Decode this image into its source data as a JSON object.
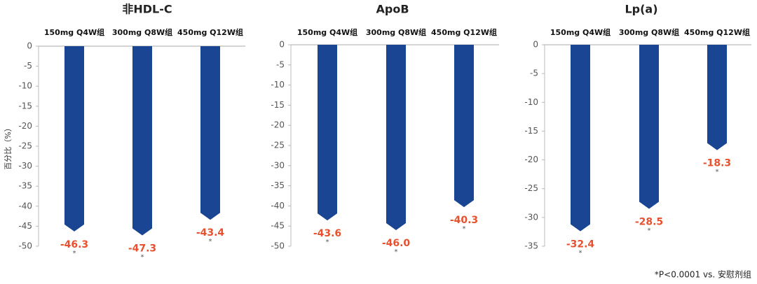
{
  "chart_data": [
    {
      "type": "bar",
      "title": "非HDL-C",
      "ylabel": "百分比（%）",
      "annotation": "*",
      "categories": [
        "150mg Q4W组",
        "300mg Q8W组",
        "450mg Q12W组"
      ],
      "values": [
        -46.3,
        -47.3,
        -43.4
      ],
      "color": "#1a4593",
      "label_color": "#e8502e",
      "ylim": [
        -50,
        0
      ],
      "yticks": [
        0,
        -5,
        -10,
        -15,
        -20,
        -25,
        -30,
        -35,
        -40,
        -45,
        -50
      ]
    },
    {
      "type": "bar",
      "title": "ApoB",
      "annotation": "*",
      "categories": [
        "150mg Q4W组",
        "300mg Q8W组",
        "450mg Q12W组"
      ],
      "values": [
        -43.6,
        -46.0,
        -40.3
      ],
      "value_labels": [
        "-43.6",
        "-46.0",
        "-40.3"
      ],
      "color": "#1a4593",
      "label_color": "#e8502e",
      "ylim": [
        -50,
        0
      ],
      "yticks": [
        0,
        -5,
        -10,
        -15,
        -20,
        -25,
        -30,
        -35,
        -40,
        -45,
        -50
      ]
    },
    {
      "type": "bar",
      "title": "Lp(a)",
      "annotation": "*",
      "categories": [
        "150mg Q4W组",
        "300mg Q8W组",
        "450mg Q12W组"
      ],
      "values": [
        -32.4,
        -28.5,
        -18.3
      ],
      "color": "#1a4593",
      "label_color": "#e8502e",
      "ylim": [
        -35,
        0
      ],
      "yticks": [
        0,
        -5,
        -10,
        -15,
        -20,
        -25,
        -30,
        -35
      ]
    }
  ],
  "footnote": "*P<0.0001 vs. 安慰剂组"
}
